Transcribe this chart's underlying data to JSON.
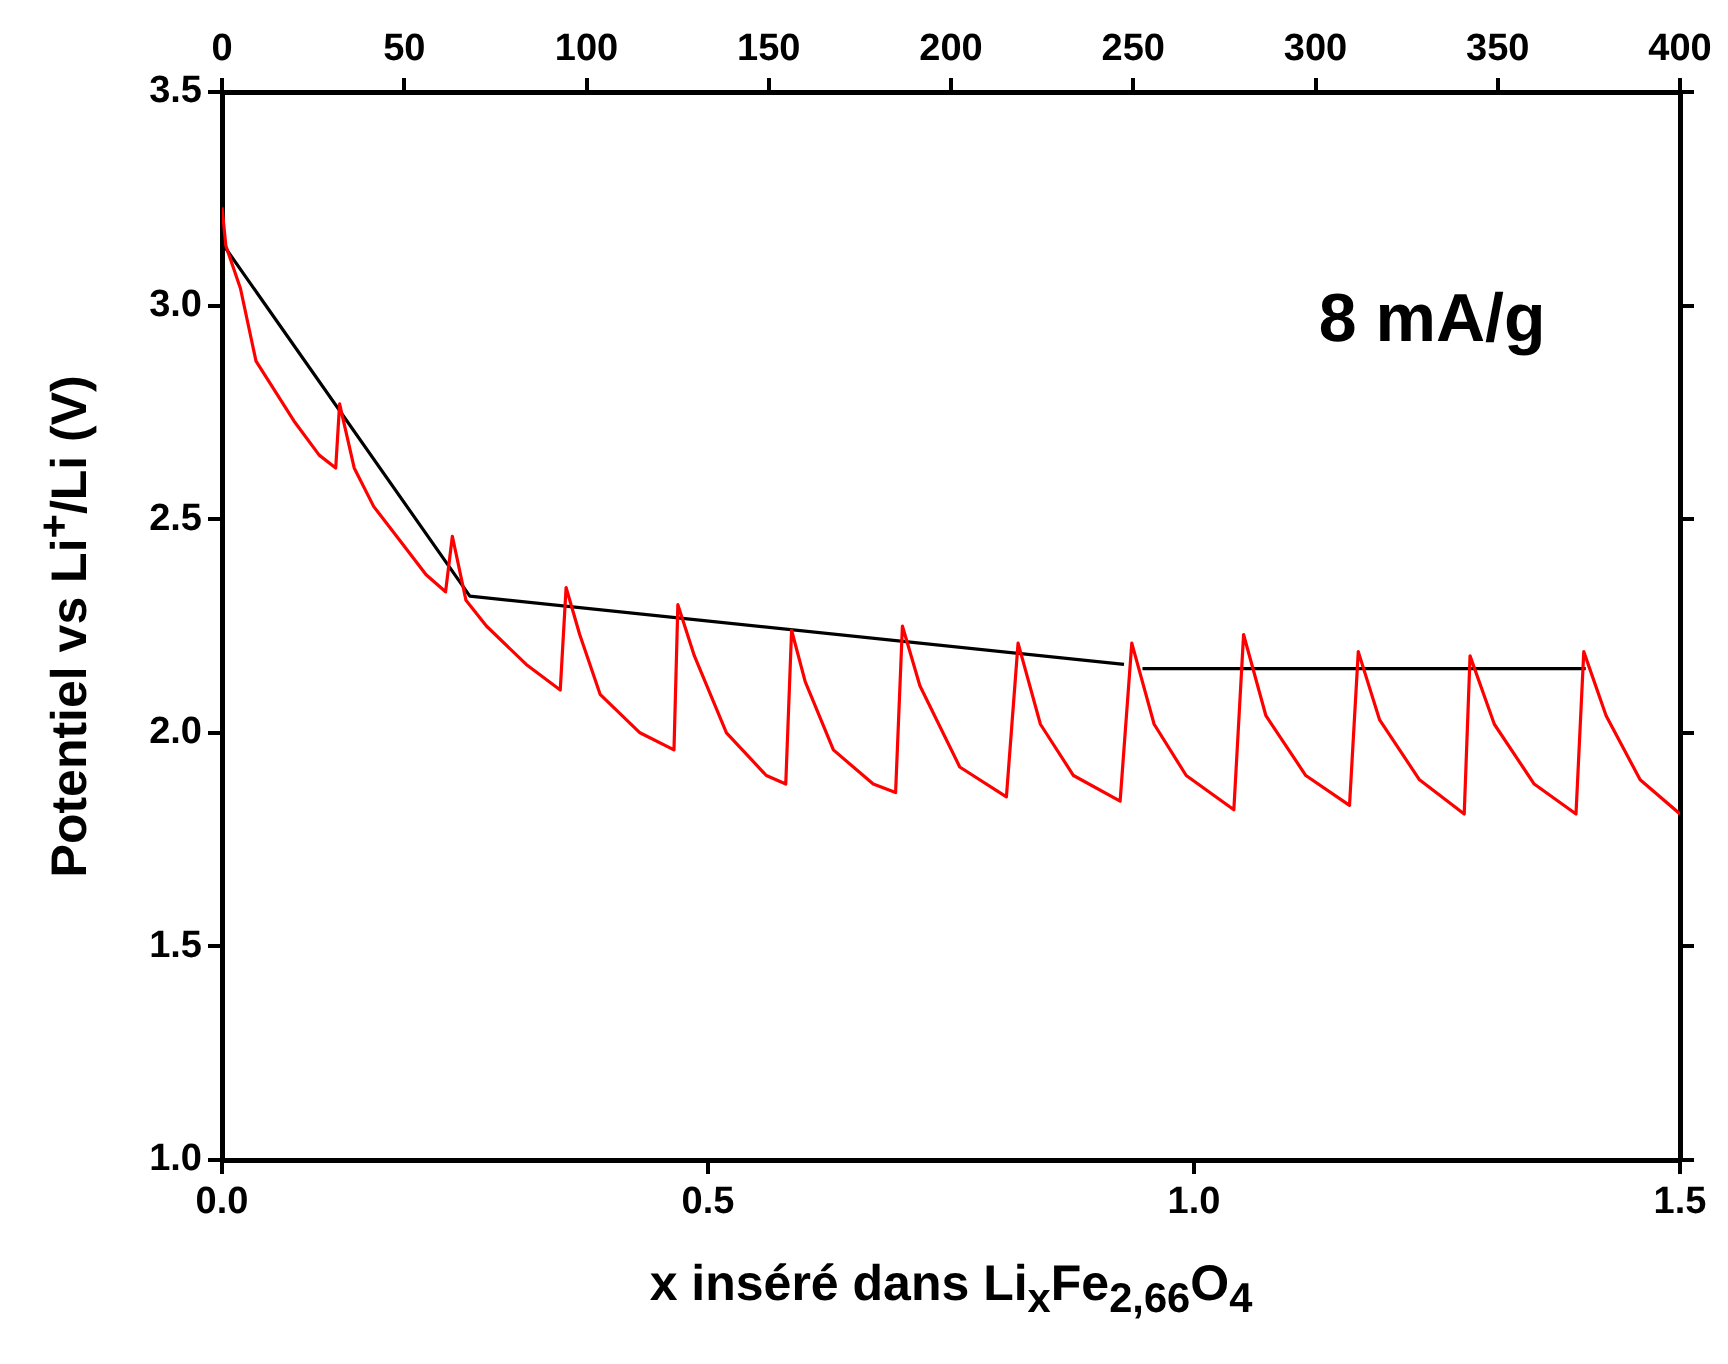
{
  "chart_data": {
    "type": "line",
    "xlabel": "x inséré dans Li$_{x}$Fe$_{2,66}$O$_{4}$",
    "ylabel": "Potentiel vs Li$^{+}$/Li (V)",
    "annotations": [
      "8 mA/g"
    ],
    "xlim": [
      0,
      1.5
    ],
    "xticks": [
      {
        "value": 0,
        "label": "0.0"
      },
      {
        "value": 0.5,
        "label": "0.5"
      },
      {
        "value": 1,
        "label": "1.0"
      },
      {
        "value": 1.5,
        "label": "1.5"
      }
    ],
    "x2lim": [
      0,
      400
    ],
    "x2ticks": [
      0,
      50,
      100,
      150,
      200,
      250,
      300,
      350,
      400
    ],
    "ylim": [
      1,
      3.5
    ],
    "yticks": [
      {
        "value": 1,
        "label": "1.0"
      },
      {
        "value": 1.5,
        "label": "1.5"
      },
      {
        "value": 2,
        "label": "2.0"
      },
      {
        "value": 2.5,
        "label": "2.5"
      },
      {
        "value": 3,
        "label": "3.0"
      },
      {
        "value": 3.5,
        "label": "3.5"
      }
    ],
    "grid": false,
    "legend": false,
    "marker": "none",
    "line_style": "solid",
    "series": [
      {
        "color": "#ff0000",
        "x": [
          0,
          0.004,
          0.019,
          0.035,
          0.074,
          0.1,
          0.117,
          0.121,
          0.136,
          0.156,
          0.183,
          0.21,
          0.23,
          0.237,
          0.251,
          0.272,
          0.313,
          0.348,
          0.354,
          0.368,
          0.389,
          0.43,
          0.465,
          0.469,
          0.486,
          0.519,
          0.56,
          0.58,
          0.586,
          0.6,
          0.629,
          0.67,
          0.693,
          0.7,
          0.718,
          0.759,
          0.807,
          0.819,
          0.842,
          0.876,
          0.924,
          0.936,
          0.959,
          0.992,
          1.041,
          1.051,
          1.074,
          1.115,
          1.16,
          1.169,
          1.191,
          1.232,
          1.278,
          1.284,
          1.309,
          1.35,
          1.393,
          1.401,
          1.424,
          1.459,
          1.5
        ],
        "values": [
          3.23,
          3.14,
          3.04,
          2.87,
          2.73,
          2.65,
          2.62,
          2.77,
          2.62,
          2.53,
          2.45,
          2.37,
          2.33,
          2.46,
          2.31,
          2.25,
          2.16,
          2.1,
          2.34,
          2.23,
          2.09,
          2,
          1.96,
          2.3,
          2.18,
          2,
          1.9,
          1.88,
          2.24,
          2.12,
          1.96,
          1.88,
          1.86,
          2.25,
          2.11,
          1.92,
          1.85,
          2.21,
          2.02,
          1.9,
          1.84,
          2.21,
          2.02,
          1.9,
          1.82,
          2.23,
          2.04,
          1.9,
          1.83,
          2.19,
          2.03,
          1.89,
          1.81,
          2.18,
          2.02,
          1.88,
          1.81,
          2.19,
          2.04,
          1.89,
          1.81
        ]
      },
      {
        "color": "#000000",
        "x": [
          0.002,
          0.255,
          0.928,
          0.938,
          0.947,
          1.403
        ],
        "values": [
          3.14,
          2.32,
          2.16,
          null,
          2.15,
          2.15
        ]
      }
    ]
  }
}
